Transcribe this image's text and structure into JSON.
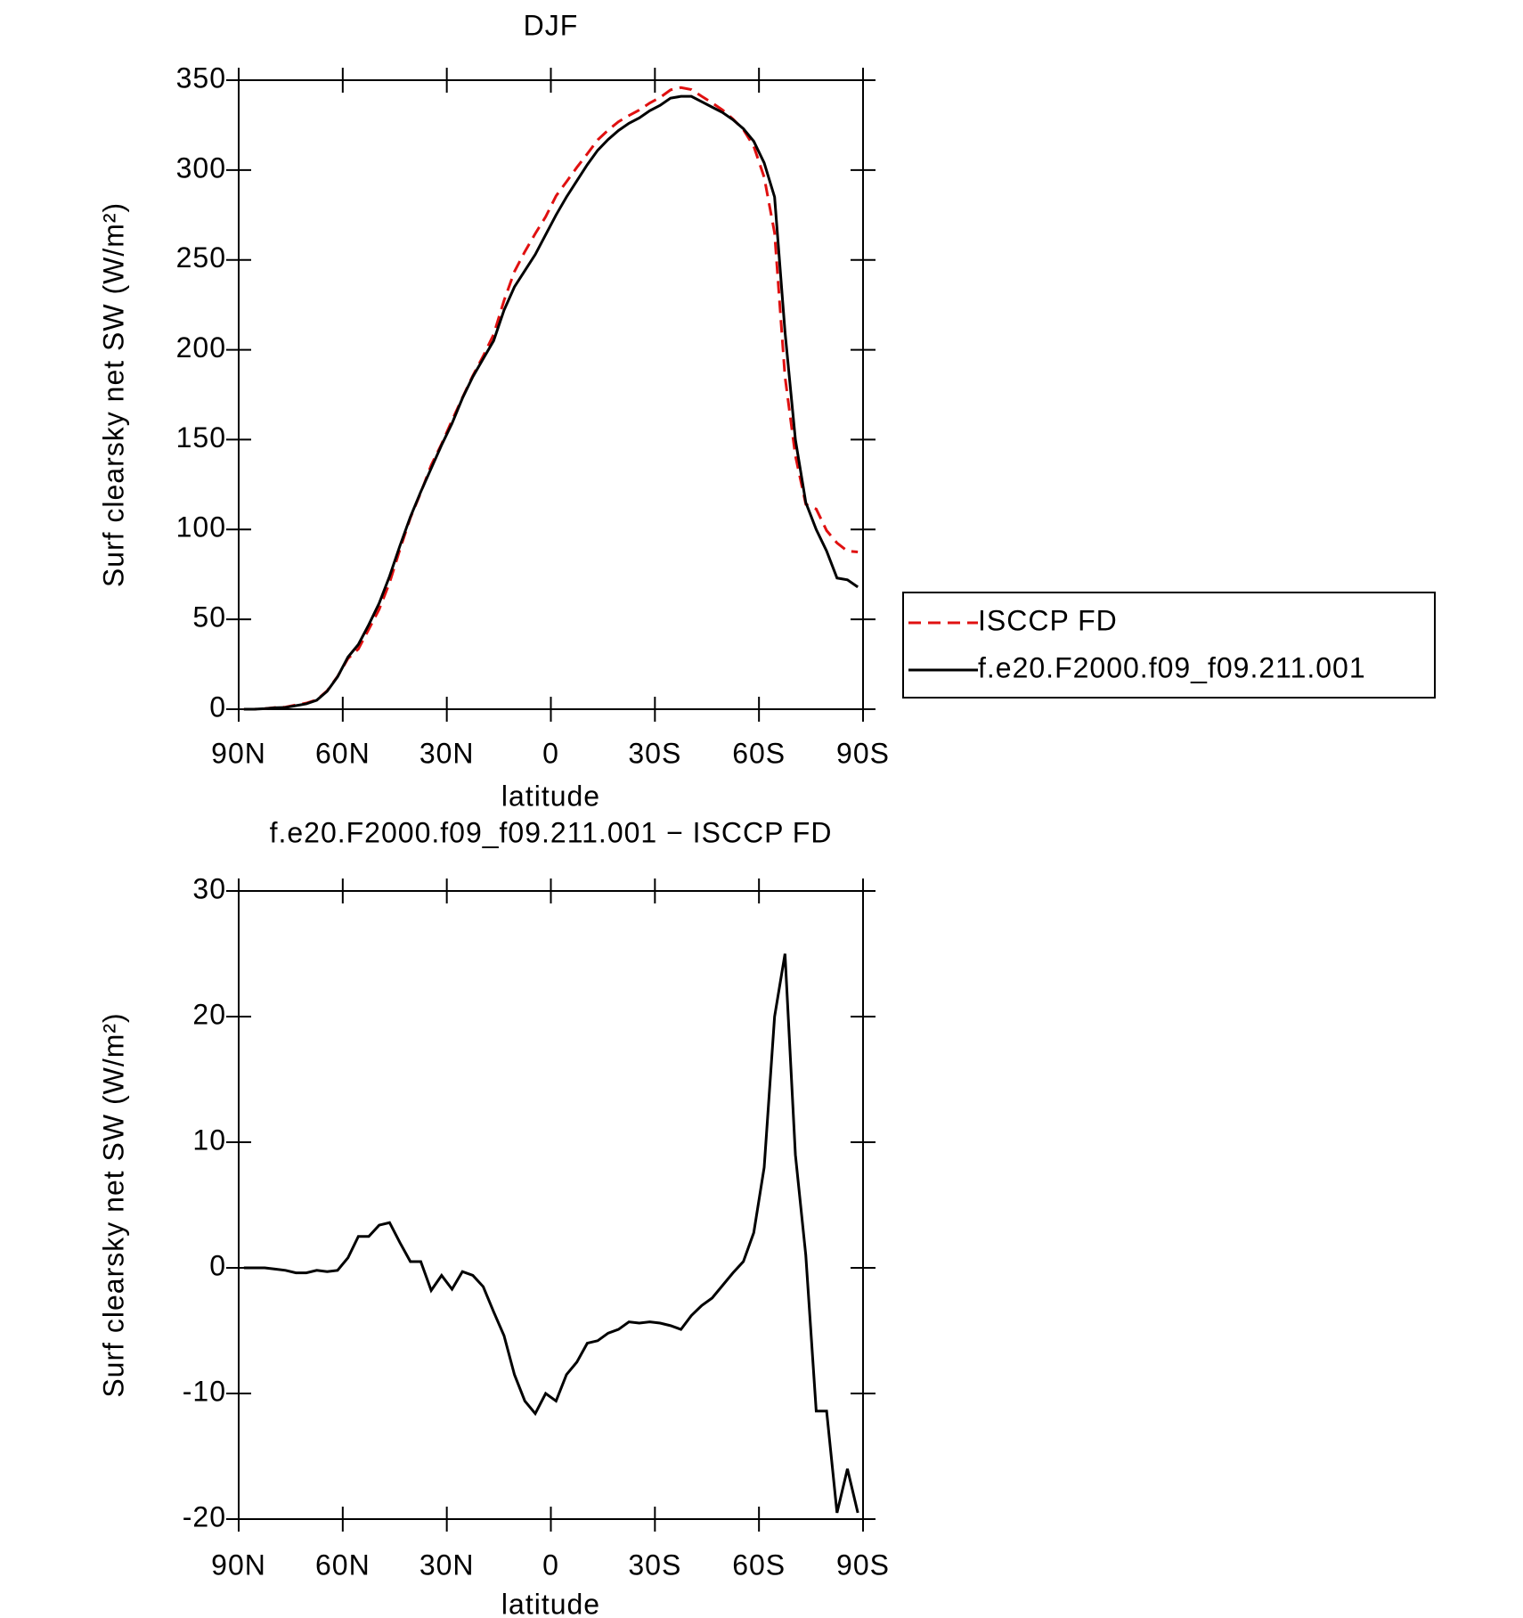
{
  "chart_data": [
    {
      "type": "line",
      "title": "DJF",
      "xlabel": "latitude",
      "ylabel": "Surf clearsky net SW (W/m²)",
      "x": [
        88.5,
        85.5,
        82.5,
        79.5,
        76.5,
        73.5,
        70.5,
        67.5,
        64.5,
        61.5,
        58.5,
        55.5,
        52.5,
        49.5,
        46.5,
        43.5,
        40.5,
        37.5,
        34.5,
        31.5,
        28.5,
        25.5,
        22.5,
        19.5,
        16.5,
        13.5,
        10.5,
        7.5,
        4.5,
        1.5,
        -1.5,
        -4.5,
        -7.5,
        -10.5,
        -13.5,
        -16.5,
        -19.5,
        -22.5,
        -25.5,
        -28.5,
        -31.5,
        -34.5,
        -37.5,
        -40.5,
        -43.5,
        -46.5,
        -49.5,
        -52.5,
        -55.5,
        -58.5,
        -61.5,
        -64.5,
        -67.5,
        -70.5,
        -73.5,
        -76.5,
        -79.5,
        -82.5,
        -85.5,
        -88.5
      ],
      "series": [
        {
          "name": "ISCCP FD",
          "color": "#e01010",
          "linestyle": "dashed",
          "values": [
            0,
            0,
            0.3,
            0.9,
            1.2,
            2.4,
            3.4,
            5.2,
            10.3,
            18.2,
            28.2,
            33.5,
            44.5,
            55.6,
            70.4,
            89,
            106.5,
            120.5,
            135.8,
            147.6,
            160.7,
            173.3,
            185.6,
            196.5,
            208.5,
            227.4,
            243.5,
            254.6,
            264.6,
            274,
            285.6,
            293.5,
            301.5,
            309,
            316.8,
            322.2,
            326.9,
            330.3,
            333.4,
            337.3,
            340.4,
            344.6,
            345.9,
            344.8,
            341,
            337.4,
            333.4,
            328.4,
            322.5,
            313.2,
            296,
            265,
            185,
            141,
            114,
            111.4,
            99.4,
            92.5,
            88,
            87.5
          ]
        },
        {
          "name": "f.e20.F2000.f09_f09.211.001",
          "color": "#000000",
          "linestyle": "solid",
          "values": [
            0,
            0,
            0.3,
            0.8,
            1,
            2,
            3,
            5,
            10,
            18,
            29,
            36,
            47,
            59,
            74,
            91,
            107,
            121,
            134,
            147,
            159,
            173,
            185,
            195,
            205,
            222,
            235,
            244,
            253,
            264,
            275,
            285,
            294,
            303,
            311,
            317,
            322,
            326,
            329,
            333,
            336,
            340,
            341,
            341,
            338,
            335,
            332,
            328,
            323,
            316,
            304,
            285,
            210,
            150,
            115,
            100,
            88,
            73,
            72,
            68
          ]
        }
      ],
      "xlim": [
        90,
        -90
      ],
      "xticks": [
        {
          "value": 90,
          "label": "90N"
        },
        {
          "value": 60,
          "label": "60N"
        },
        {
          "value": 30,
          "label": "30N"
        },
        0,
        {
          "value": -30,
          "label": "30S"
        },
        {
          "value": -60,
          "label": "60S"
        },
        {
          "value": -90,
          "label": "90S"
        }
      ],
      "ylim": [
        0,
        350
      ],
      "yticks": [
        0,
        50,
        100,
        150,
        200,
        250,
        300,
        350
      ],
      "legend": "right"
    },
    {
      "type": "line",
      "title": "f.e20.F2000.f09_f09.211.001 − ISCCP FD",
      "xlabel": "latitude",
      "ylabel": "Surf clearsky net SW (W/m²)",
      "x": [
        88.5,
        85.5,
        82.5,
        79.5,
        76.5,
        73.5,
        70.5,
        67.5,
        64.5,
        61.5,
        58.5,
        55.5,
        52.5,
        49.5,
        46.5,
        43.5,
        40.5,
        37.5,
        34.5,
        31.5,
        28.5,
        25.5,
        22.5,
        19.5,
        16.5,
        13.5,
        10.5,
        7.5,
        4.5,
        1.5,
        -1.5,
        -4.5,
        -7.5,
        -10.5,
        -13.5,
        -16.5,
        -19.5,
        -22.5,
        -25.5,
        -28.5,
        -31.5,
        -34.5,
        -37.5,
        -40.5,
        -43.5,
        -46.5,
        -49.5,
        -52.5,
        -55.5,
        -58.5,
        -61.5,
        -64.5,
        -67.5,
        -70.5,
        -73.5,
        -76.5,
        -79.5,
        -82.5,
        -85.5,
        -88.5
      ],
      "series": [
        {
          "color": "#000000",
          "linestyle": "solid",
          "values": [
            0,
            0,
            0,
            -0.1,
            -0.2,
            -0.4,
            -0.4,
            -0.2,
            -0.3,
            -0.2,
            0.8,
            2.5,
            2.5,
            3.4,
            3.6,
            2,
            0.5,
            0.5,
            -1.8,
            -0.6,
            -1.7,
            -0.3,
            -0.6,
            -1.5,
            -3.5,
            -5.4,
            -8.5,
            -10.6,
            -11.6,
            -10,
            -10.6,
            -8.5,
            -7.5,
            -6,
            -5.8,
            -5.2,
            -4.9,
            -4.3,
            -4.4,
            -4.3,
            -4.4,
            -4.6,
            -4.9,
            -3.8,
            -3,
            -2.4,
            -1.4,
            -0.4,
            0.5,
            2.8,
            8,
            20,
            25,
            9,
            1,
            -11.4,
            -11.4,
            -19.5,
            -16,
            -19.5
          ]
        }
      ],
      "xlim": [
        90,
        -90
      ],
      "xticks": [
        {
          "value": 90,
          "label": "90N"
        },
        {
          "value": 60,
          "label": "60N"
        },
        {
          "value": 30,
          "label": "30N"
        },
        0,
        {
          "value": -30,
          "label": "30S"
        },
        {
          "value": -60,
          "label": "60S"
        },
        {
          "value": -90,
          "label": "90S"
        }
      ],
      "ylim": [
        -20,
        30
      ],
      "yticks": [
        -20,
        -10,
        0,
        10,
        20,
        30
      ]
    }
  ]
}
